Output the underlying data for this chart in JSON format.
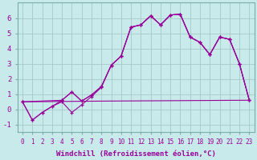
{
  "background_color": "#c8eaea",
  "grid_color": "#a8c8c8",
  "line_color": "#990099",
  "marker": "+",
  "xlabel": "Windchill (Refroidissement éolien,°C)",
  "xlabel_fontsize": 6.5,
  "xtick_fontsize": 5.5,
  "ytick_fontsize": 6.5,
  "ylim": [
    -1.5,
    7.0
  ],
  "xlim": [
    -0.5,
    23.5
  ],
  "yticks": [
    -1,
    0,
    1,
    2,
    3,
    4,
    5,
    6
  ],
  "xticks": [
    0,
    1,
    2,
    3,
    4,
    5,
    6,
    7,
    8,
    9,
    10,
    11,
    12,
    13,
    14,
    15,
    16,
    17,
    18,
    19,
    20,
    21,
    22,
    23
  ],
  "series": [
    {
      "x": [
        0,
        1,
        2,
        3,
        4,
        5,
        6,
        7,
        8,
        9,
        10,
        11,
        12,
        13,
        14,
        15,
        16,
        17,
        18,
        19,
        20,
        21,
        22,
        23
      ],
      "y": [
        0.5,
        -0.7,
        -0.2,
        0.2,
        0.5,
        -0.2,
        0.3,
        0.85,
        1.45,
        2.9,
        3.5,
        5.4,
        5.55,
        6.15,
        5.55,
        6.2,
        6.25,
        4.75,
        4.4,
        3.6,
        4.75,
        4.6,
        3.0,
        0.6
      ],
      "marker": true
    },
    {
      "x": [
        0,
        1,
        2,
        3,
        4,
        5,
        6,
        7,
        8,
        9,
        10,
        11,
        12,
        13,
        14,
        15,
        16,
        17,
        18,
        19,
        20,
        21,
        22,
        23
      ],
      "y": [
        0.5,
        -0.7,
        -0.2,
        0.2,
        0.6,
        1.15,
        0.55,
        0.95,
        1.5,
        2.9,
        3.5,
        5.4,
        5.55,
        6.15,
        5.55,
        6.2,
        6.25,
        4.75,
        4.4,
        3.6,
        4.75,
        4.6,
        3.0,
        0.6
      ],
      "marker": true
    },
    {
      "x": [
        0,
        4,
        5,
        6,
        7,
        8,
        9,
        10,
        11,
        12,
        13,
        14,
        15,
        16,
        17,
        18,
        19,
        20,
        21,
        22,
        23
      ],
      "y": [
        0.5,
        0.6,
        1.15,
        0.55,
        0.95,
        1.5,
        2.9,
        3.5,
        5.4,
        5.55,
        6.15,
        5.55,
        6.2,
        6.25,
        4.75,
        4.4,
        3.6,
        4.75,
        4.6,
        3.0,
        0.6
      ],
      "marker": true
    },
    {
      "x": [
        0,
        9,
        22,
        23
      ],
      "y": [
        0.5,
        0.55,
        0.6,
        0.6
      ],
      "marker": false
    }
  ]
}
